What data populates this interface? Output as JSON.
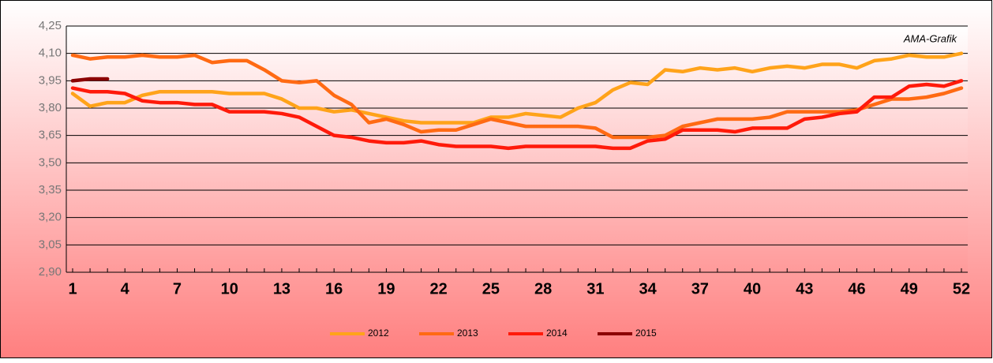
{
  "chart_data": {
    "type": "line",
    "annotation": "AMA-Grafik",
    "x": [
      1,
      2,
      3,
      4,
      5,
      6,
      7,
      8,
      9,
      10,
      11,
      12,
      13,
      14,
      15,
      16,
      17,
      18,
      19,
      20,
      21,
      22,
      23,
      24,
      25,
      26,
      27,
      28,
      29,
      30,
      31,
      32,
      33,
      34,
      35,
      36,
      37,
      38,
      39,
      40,
      41,
      42,
      43,
      44,
      45,
      46,
      47,
      48,
      49,
      50,
      51,
      52
    ],
    "xlim": [
      1,
      52
    ],
    "xticks": [
      1,
      4,
      7,
      10,
      13,
      16,
      19,
      22,
      25,
      28,
      31,
      34,
      37,
      40,
      43,
      46,
      49,
      52
    ],
    "ylim": [
      2.9,
      4.25
    ],
    "yticks": [
      {
        "value": 2.9,
        "label": "2,90"
      },
      {
        "value": 3.05,
        "label": "3,05"
      },
      {
        "value": 3.2,
        "label": "3,20"
      },
      {
        "value": 3.35,
        "label": "3,35"
      },
      {
        "value": 3.5,
        "label": "3,50"
      },
      {
        "value": 3.65,
        "label": "3,65"
      },
      {
        "value": 3.8,
        "label": "3,80"
      },
      {
        "value": 3.95,
        "label": "3,95"
      },
      {
        "value": 4.1,
        "label": "4,10"
      },
      {
        "value": 4.25,
        "label": "4,25"
      }
    ],
    "grid": true,
    "legend": "bottom",
    "series": [
      {
        "name": "2012",
        "color": "#ffa31a",
        "values": [
          3.88,
          3.81,
          3.83,
          3.83,
          3.87,
          3.89,
          3.89,
          3.89,
          3.89,
          3.88,
          3.88,
          3.88,
          3.85,
          3.8,
          3.8,
          3.78,
          3.79,
          3.77,
          3.75,
          3.73,
          3.72,
          3.72,
          3.72,
          3.72,
          3.75,
          3.75,
          3.77,
          3.76,
          3.75,
          3.8,
          3.83,
          3.9,
          3.94,
          3.93,
          4.01,
          4.0,
          4.02,
          4.01,
          4.02,
          4.0,
          4.02,
          4.03,
          4.02,
          4.04,
          4.04,
          4.02,
          4.06,
          4.07,
          4.09,
          4.08,
          4.08,
          4.1
        ]
      },
      {
        "name": "2013",
        "color": "#ff6a13",
        "values": [
          4.09,
          4.07,
          4.08,
          4.08,
          4.09,
          4.08,
          4.08,
          4.09,
          4.05,
          4.06,
          4.06,
          4.01,
          3.95,
          3.94,
          3.95,
          3.87,
          3.82,
          3.72,
          3.74,
          3.71,
          3.67,
          3.68,
          3.68,
          3.71,
          3.74,
          3.72,
          3.7,
          3.7,
          3.7,
          3.7,
          3.69,
          3.64,
          3.64,
          3.64,
          3.65,
          3.7,
          3.72,
          3.74,
          3.74,
          3.74,
          3.75,
          3.78,
          3.78,
          3.78,
          3.78,
          3.79,
          3.82,
          3.85,
          3.85,
          3.86,
          3.88,
          3.91
        ]
      },
      {
        "name": "2014",
        "color": "#ff1a0a",
        "values": [
          3.91,
          3.89,
          3.89,
          3.88,
          3.84,
          3.83,
          3.83,
          3.82,
          3.82,
          3.78,
          3.78,
          3.78,
          3.77,
          3.75,
          3.7,
          3.65,
          3.64,
          3.62,
          3.61,
          3.61,
          3.62,
          3.6,
          3.59,
          3.59,
          3.59,
          3.58,
          3.59,
          3.59,
          3.59,
          3.59,
          3.59,
          3.58,
          3.58,
          3.62,
          3.63,
          3.68,
          3.68,
          3.68,
          3.67,
          3.69,
          3.69,
          3.69,
          3.74,
          3.75,
          3.77,
          3.78,
          3.86,
          3.86,
          3.92,
          3.93,
          3.92,
          3.95
        ]
      },
      {
        "name": "2015",
        "color": "#8b0000",
        "values": [
          3.95,
          3.96,
          3.96,
          null,
          null,
          null,
          null,
          null,
          null,
          null,
          null,
          null,
          null,
          null,
          null,
          null,
          null,
          null,
          null,
          null,
          null,
          null,
          null,
          null,
          null,
          null,
          null,
          null,
          null,
          null,
          null,
          null,
          null,
          null,
          null,
          null,
          null,
          null,
          null,
          null,
          null,
          null,
          null,
          null,
          null,
          null,
          null,
          null,
          null,
          null,
          null,
          null
        ]
      }
    ]
  }
}
